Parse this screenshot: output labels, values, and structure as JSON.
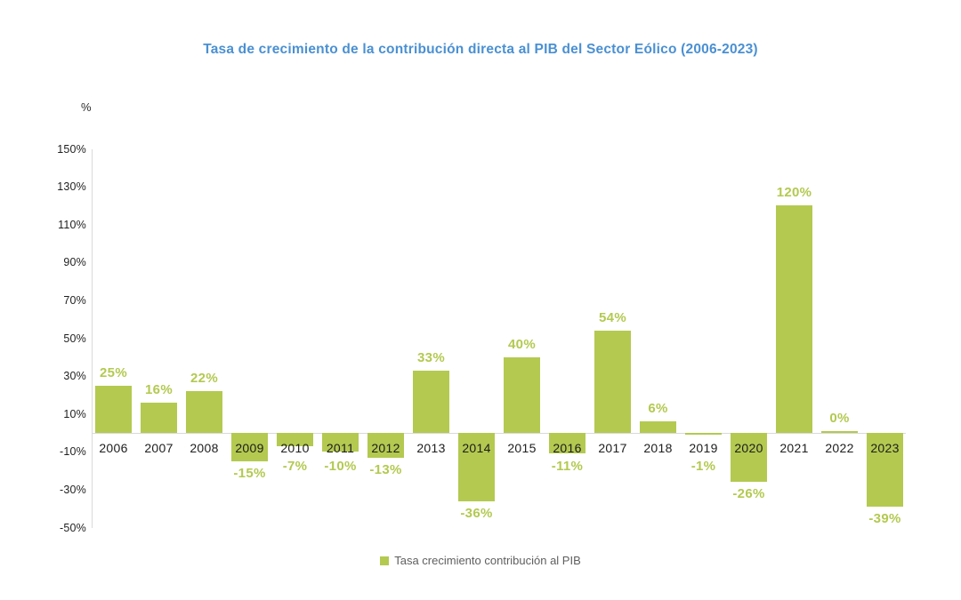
{
  "title": "Tasa de crecimiento de la contribución directa al PIB del Sector Eólico (2006-2023)",
  "colors": {
    "bar": "#b3c950",
    "value_label": "#b3c950",
    "title": "#4a90d2",
    "axis_line": "#d9d9d9",
    "tick_text": "#1f1f1f",
    "year_text": "#1d1d1d",
    "legend_text": "#5f5f5f",
    "background": "#ffffff"
  },
  "y_axis": {
    "unit_label": "%",
    "max": 150,
    "min": -50,
    "tick_step": 20,
    "tick_labels": [
      "150%",
      "130%",
      "110%",
      "90%",
      "70%",
      "50%",
      "30%",
      "10%",
      "-10%",
      "-30%",
      "-50%"
    ]
  },
  "legend": {
    "label": "Tasa crecimiento contribución al PIB",
    "position": "bottom"
  },
  "chart_data": {
    "type": "bar",
    "title": "Tasa de crecimiento de la contribución directa al PIB del Sector Eólico (2006-2023)",
    "categories": [
      "2006",
      "2007",
      "2008",
      "2009",
      "2010",
      "2011",
      "2012",
      "2013",
      "2014",
      "2015",
      "2016",
      "2017",
      "2018",
      "2019",
      "2020",
      "2021",
      "2022",
      "2023"
    ],
    "series": [
      {
        "name": "Tasa crecimiento contribución al PIB",
        "values": [
          25,
          16,
          22,
          -15,
          -7,
          -10,
          -13,
          33,
          -36,
          40,
          -11,
          54,
          6,
          -1,
          -26,
          120,
          0,
          -39
        ],
        "value_labels": [
          "25%",
          "16%",
          "22%",
          "-15%",
          "-7%",
          "-10%",
          "-13%",
          "33%",
          "-36%",
          "40%",
          "-11%",
          "54%",
          "6%",
          "-1%",
          "-26%",
          "120%",
          "0%",
          "-39%"
        ]
      }
    ],
    "xlabel": "",
    "ylabel": "%",
    "ylim": [
      -50,
      150
    ],
    "grid": false,
    "legend_position": "bottom"
  }
}
